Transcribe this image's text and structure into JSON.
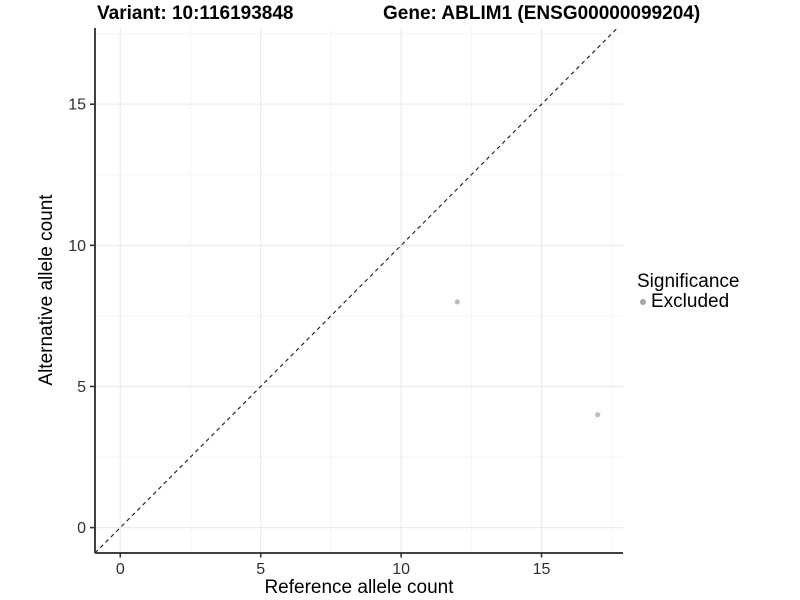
{
  "header": {
    "title_left": "Variant: 10:116193848",
    "title_right": "Gene: ABLIM1 (ENSG00000099204)"
  },
  "chart_data": {
    "type": "scatter",
    "xlabel": "Reference allele count",
    "ylabel": "Alternative allele count",
    "xlim": [
      -0.9,
      17.9
    ],
    "ylim": [
      -0.9,
      17.7
    ],
    "x_ticks": [
      0,
      5,
      10,
      15
    ],
    "y_ticks": [
      0,
      5,
      10,
      15
    ],
    "x_minor_ticks": [
      2.5,
      7.5,
      12.5,
      17.5
    ],
    "y_minor_ticks": [
      2.5,
      7.5,
      12.5,
      17.5
    ],
    "grid": "on",
    "series": [
      {
        "name": "Excluded",
        "color": "#bdbdbd",
        "points": [
          {
            "x": 12,
            "y": 8
          },
          {
            "x": 17,
            "y": 4
          }
        ]
      }
    ],
    "reference_line": {
      "kind": "identity",
      "style": "dashed",
      "color": "#1a1a1a"
    },
    "legend": {
      "title": "Significance",
      "position": "right",
      "items": [
        {
          "label": "Excluded",
          "marker_color": "#a6a6a6"
        }
      ]
    }
  },
  "style": {
    "grid_major_color": "#ebebeb",
    "grid_minor_color": "#f5f5f5",
    "axis_line_color": "#404040",
    "tick_mark_color": "#333333",
    "tick_label_color": "#303030",
    "point_color": "#bdbdbd",
    "background_color": "#ffffff"
  }
}
